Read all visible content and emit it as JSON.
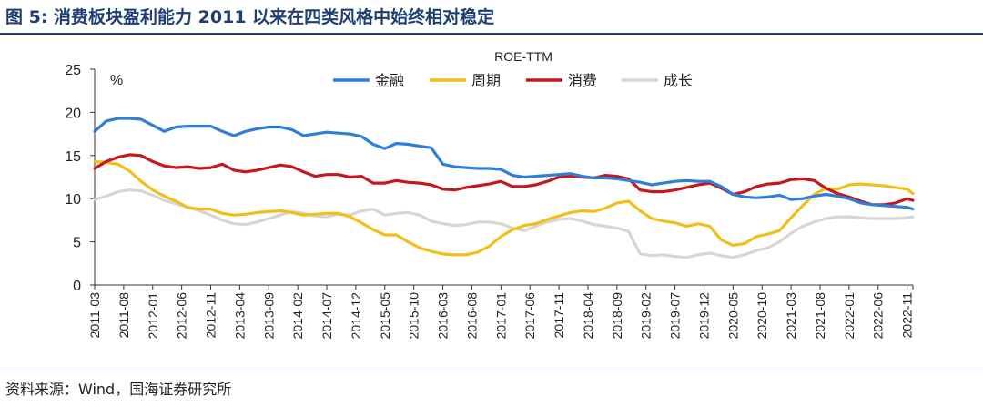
{
  "header": {
    "title": "图 5:  消费板块盈利能力 2011 以来在四类风格中始终相对稳定"
  },
  "footer": {
    "source": "资料来源：Wind，国海证券研究所"
  },
  "chart_data": {
    "type": "line",
    "title": "ROE-TTM",
    "unit_label": "%",
    "ylim": [
      0,
      25
    ],
    "yticks": [
      0,
      5,
      10,
      15,
      20,
      25
    ],
    "grid": false,
    "legend_position": "top",
    "x_tick_labels": [
      "2011-03",
      "2011-08",
      "2012-01",
      "2012-06",
      "2012-11",
      "2013-04",
      "2013-09",
      "2014-02",
      "2014-07",
      "2014-12",
      "2015-05",
      "2015-10",
      "2016-03",
      "2016-08",
      "2017-01",
      "2017-06",
      "2017-11",
      "2018-04",
      "2018-09",
      "2019-02",
      "2019-07",
      "2019-12",
      "2020-05",
      "2020-10",
      "2021-03",
      "2021-08",
      "2022-01",
      "2022-06",
      "2022-11"
    ],
    "x": [
      "2011-03",
      "2011-05",
      "2011-07",
      "2011-09",
      "2011-11",
      "2012-01",
      "2012-03",
      "2012-05",
      "2012-07",
      "2012-09",
      "2012-11",
      "2013-01",
      "2013-03",
      "2013-05",
      "2013-07",
      "2013-09",
      "2013-11",
      "2014-01",
      "2014-03",
      "2014-05",
      "2014-07",
      "2014-09",
      "2014-11",
      "2015-01",
      "2015-03",
      "2015-05",
      "2015-07",
      "2015-09",
      "2015-11",
      "2016-01",
      "2016-03",
      "2016-05",
      "2016-07",
      "2016-09",
      "2016-11",
      "2017-01",
      "2017-03",
      "2017-05",
      "2017-07",
      "2017-09",
      "2017-11",
      "2018-01",
      "2018-03",
      "2018-05",
      "2018-07",
      "2018-09",
      "2018-11",
      "2019-01",
      "2019-03",
      "2019-05",
      "2019-07",
      "2019-09",
      "2019-11",
      "2020-01",
      "2020-03",
      "2020-05",
      "2020-07",
      "2020-09",
      "2020-11",
      "2021-01",
      "2021-03",
      "2021-05",
      "2021-07",
      "2021-09",
      "2021-11",
      "2022-01",
      "2022-03",
      "2022-05",
      "2022-07",
      "2022-09",
      "2022-11",
      "2022-12"
    ],
    "series": [
      {
        "name": "金融",
        "color": "#2f7fd8",
        "values": [
          17.8,
          19.0,
          19.3,
          19.3,
          19.2,
          18.5,
          17.8,
          18.3,
          18.4,
          18.4,
          18.4,
          17.8,
          17.3,
          17.8,
          18.1,
          18.3,
          18.3,
          18.0,
          17.3,
          17.5,
          17.7,
          17.6,
          17.5,
          17.2,
          16.3,
          15.8,
          16.4,
          16.3,
          16.1,
          15.9,
          14.0,
          13.7,
          13.6,
          13.5,
          13.5,
          13.4,
          12.7,
          12.5,
          12.6,
          12.7,
          12.8,
          12.9,
          12.6,
          12.4,
          12.4,
          12.3,
          12.1,
          11.9,
          11.6,
          11.8,
          12.0,
          12.1,
          12.0,
          12.0,
          11.4,
          10.5,
          10.2,
          10.1,
          10.2,
          10.4,
          9.9,
          10.0,
          10.3,
          10.5,
          10.3,
          10.0,
          9.5,
          9.3,
          9.2,
          9.1,
          9.0,
          8.8
        ]
      },
      {
        "name": "周期",
        "color": "#f2be1a",
        "values": [
          14.3,
          14.2,
          14.0,
          13.2,
          12.0,
          11.0,
          10.3,
          9.7,
          9.0,
          8.8,
          8.8,
          8.3,
          8.1,
          8.2,
          8.4,
          8.5,
          8.6,
          8.4,
          8.1,
          8.2,
          8.3,
          8.3,
          7.9,
          7.2,
          6.4,
          5.8,
          5.8,
          5.0,
          4.3,
          3.9,
          3.6,
          3.5,
          3.5,
          3.8,
          4.5,
          5.6,
          6.4,
          6.9,
          7.1,
          7.6,
          8.0,
          8.4,
          8.6,
          8.5,
          8.9,
          9.5,
          9.7,
          8.6,
          7.7,
          7.4,
          7.2,
          6.8,
          7.1,
          6.8,
          5.2,
          4.6,
          4.8,
          5.6,
          5.9,
          6.3,
          7.8,
          9.2,
          10.5,
          11.2,
          11.1,
          11.6,
          11.7,
          11.6,
          11.5,
          11.3,
          11.1,
          10.6
        ]
      },
      {
        "name": "消费",
        "color": "#c4181f",
        "values": [
          13.5,
          14.3,
          14.8,
          15.1,
          15.0,
          14.3,
          13.8,
          13.6,
          13.7,
          13.5,
          13.6,
          14.0,
          13.3,
          13.1,
          13.3,
          13.6,
          13.9,
          13.7,
          13.1,
          12.6,
          12.8,
          12.8,
          12.5,
          12.6,
          11.8,
          11.8,
          12.1,
          11.9,
          11.8,
          11.6,
          11.1,
          11.0,
          11.3,
          11.5,
          11.7,
          12.0,
          11.4,
          11.4,
          11.6,
          12.0,
          12.5,
          12.6,
          12.5,
          12.4,
          12.7,
          12.6,
          12.3,
          11.0,
          10.8,
          10.8,
          11.0,
          11.3,
          11.6,
          11.8,
          11.2,
          10.5,
          10.8,
          11.4,
          11.7,
          11.8,
          12.2,
          12.3,
          12.1,
          11.2,
          10.6,
          10.2,
          9.7,
          9.3,
          9.3,
          9.5,
          10.0,
          9.8
        ]
      },
      {
        "name": "成长",
        "color": "#d6d6d6",
        "values": [
          9.9,
          10.3,
          10.8,
          11.0,
          10.9,
          10.4,
          9.8,
          9.4,
          9.0,
          8.6,
          8.1,
          7.5,
          7.1,
          7.0,
          7.3,
          7.7,
          8.1,
          8.5,
          8.3,
          8.0,
          7.9,
          8.2,
          8.1,
          8.6,
          8.8,
          8.1,
          8.3,
          8.4,
          8.1,
          7.4,
          7.1,
          6.9,
          7.0,
          7.3,
          7.3,
          7.1,
          6.6,
          6.3,
          6.8,
          7.3,
          7.6,
          7.7,
          7.4,
          7.0,
          6.8,
          6.6,
          6.2,
          3.6,
          3.4,
          3.5,
          3.3,
          3.2,
          3.5,
          3.7,
          3.4,
          3.2,
          3.5,
          4.0,
          4.3,
          5.0,
          6.0,
          6.8,
          7.3,
          7.7,
          7.9,
          7.9,
          7.8,
          7.7,
          7.7,
          7.7,
          7.8,
          7.9
        ]
      }
    ]
  }
}
